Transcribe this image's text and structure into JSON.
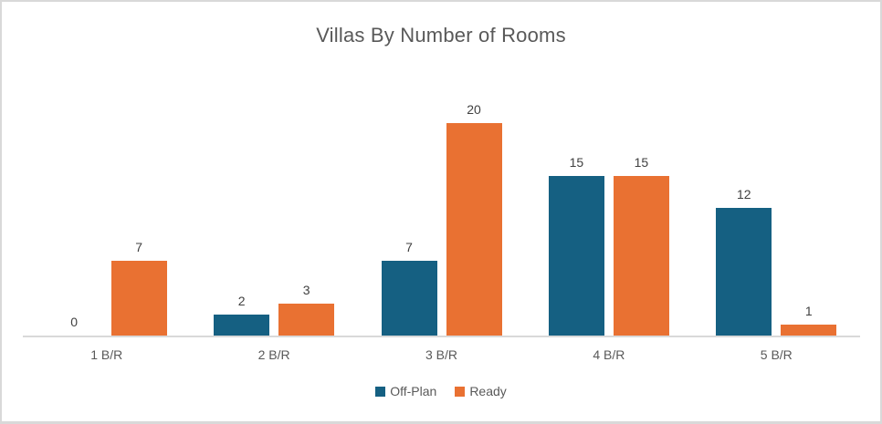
{
  "chart_data": {
    "type": "bar",
    "title": "Villas By Number of Rooms",
    "categories": [
      "1 B/R",
      "2 B/R",
      "3 B/R",
      "4 B/R",
      "5 B/R"
    ],
    "series": [
      {
        "name": "Off-Plan",
        "color": "#156082",
        "values": [
          0,
          2,
          7,
          15,
          12
        ]
      },
      {
        "name": "Ready",
        "color": "#E97132",
        "values": [
          7,
          3,
          20,
          15,
          1
        ]
      }
    ],
    "ylim": [
      0,
      20
    ],
    "xlabel": "",
    "ylabel": "",
    "grid": false,
    "y_axis_visible": false,
    "data_labels": true,
    "legend_position": "bottom"
  },
  "styling": {
    "title_color": "#595959",
    "data_label_color": "#404040",
    "axis_label_color": "#595959",
    "axis_line_color": "#D9D9D9",
    "frame_border_color": "#D9D9D9",
    "background": "#FFFFFF"
  }
}
